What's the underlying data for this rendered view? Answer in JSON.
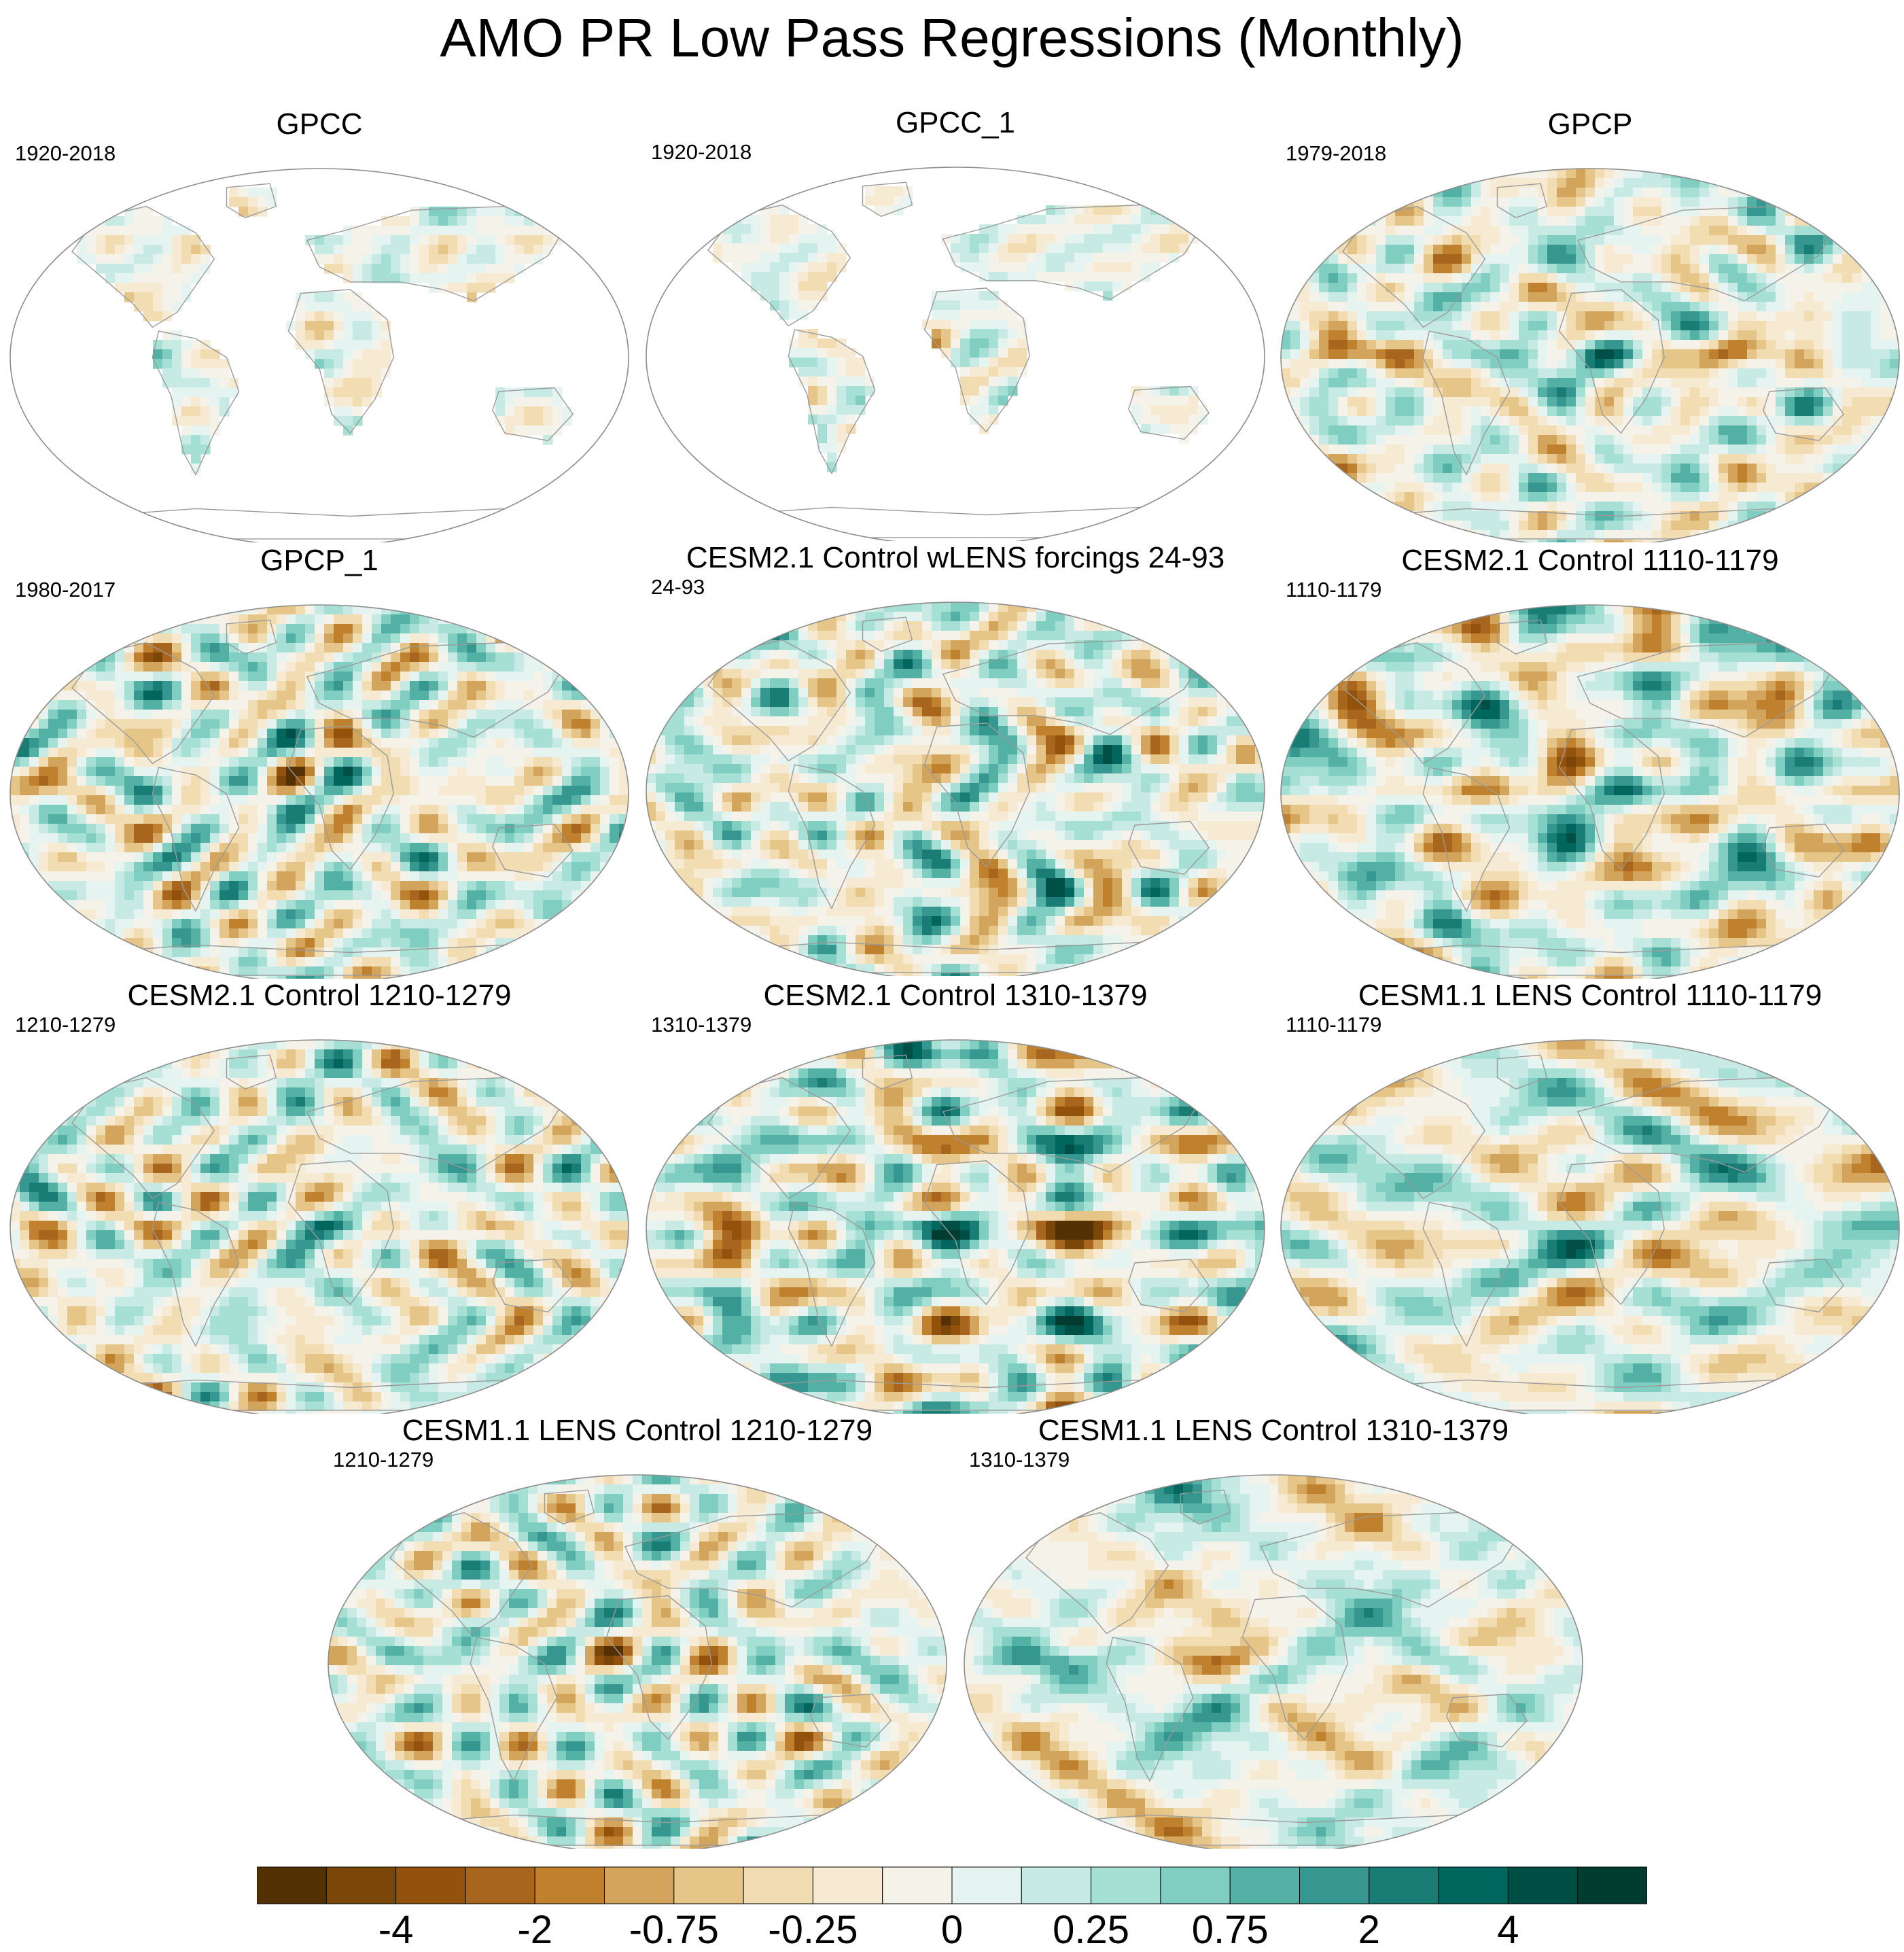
{
  "figure": {
    "title": "AMO PR Low Pass Regressions (Monthly)"
  },
  "panels": [
    {
      "title": "GPCC",
      "years": "1920-2018",
      "coverage": "land",
      "seed": 11
    },
    {
      "title": "GPCC_1",
      "years": "1920-2018",
      "coverage": "land",
      "seed": 12
    },
    {
      "title": "GPCP",
      "years": "1979-2018",
      "coverage": "global",
      "seed": 21
    },
    {
      "title": "GPCP_1",
      "years": "1980-2017",
      "coverage": "global",
      "seed": 22
    },
    {
      "title": "CESM2.1 Control wLENS forcings 24-93",
      "years": "24-93",
      "coverage": "global",
      "seed": 31
    },
    {
      "title": "CESM2.1 Control 1110-1179",
      "years": "1110-1179",
      "coverage": "global",
      "seed": 32
    },
    {
      "title": "CESM2.1 Control 1210-1279",
      "years": "1210-1279",
      "coverage": "global",
      "seed": 33
    },
    {
      "title": "CESM2.1 Control 1310-1379",
      "years": "1310-1379",
      "coverage": "global",
      "seed": 34
    },
    {
      "title": "CESM1.1 LENS Control 1110-1179",
      "years": "1110-1179",
      "coverage": "global",
      "seed": 41
    },
    {
      "title": "CESM1.1 LENS Control 1210-1279",
      "years": "1210-1279",
      "coverage": "global",
      "seed": 42
    },
    {
      "title": "CESM1.1 LENS Control 1310-1379",
      "years": "1310-1379",
      "coverage": "global",
      "seed": 43
    }
  ],
  "colorbar": {
    "colors": [
      "#543005",
      "#7a4708",
      "#93520b",
      "#a8651d",
      "#bf812d",
      "#d3a55c",
      "#e6c589",
      "#f2ddb2",
      "#f6ebd2",
      "#f5f2ea",
      "#e6f4f1",
      "#c7eae5",
      "#a6dfd4",
      "#80cdc1",
      "#52b0a5",
      "#35978f",
      "#1a7d75",
      "#01665e",
      "#004f46",
      "#003c30"
    ],
    "labels": [
      {
        "text": "-4",
        "boundary": 2
      },
      {
        "text": "-2",
        "boundary": 4
      },
      {
        "text": "-0.75",
        "boundary": 6
      },
      {
        "text": "-0.25",
        "boundary": 8
      },
      {
        "text": "0",
        "boundary": 10
      },
      {
        "text": "0.25",
        "boundary": 12
      },
      {
        "text": "0.75",
        "boundary": 14
      },
      {
        "text": "2",
        "boundary": 16
      },
      {
        "text": "4",
        "boundary": 18
      }
    ]
  }
}
